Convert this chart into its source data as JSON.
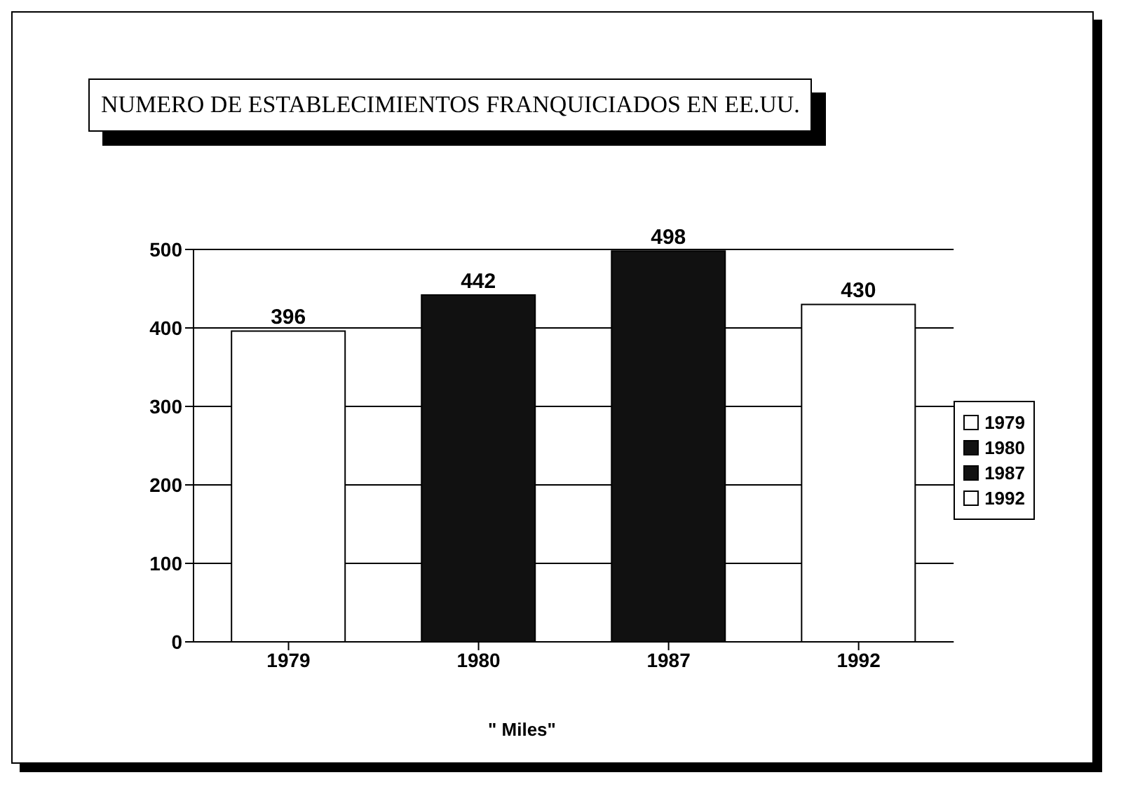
{
  "chart_data": {
    "type": "bar",
    "title": "NUMERO DE ESTABLECIMIENTOS FRANQUICIADOS EN EE.UU.",
    "xlabel": "\" Miles\"",
    "categories": [
      "1979",
      "1980",
      "1987",
      "1992"
    ],
    "series": [
      {
        "name": "1979",
        "color": "#ffffff",
        "values": [
          396,
          null,
          null,
          null
        ]
      },
      {
        "name": "1980",
        "color": "#111111",
        "values": [
          null,
          442,
          null,
          null
        ]
      },
      {
        "name": "1987",
        "color": "#111111",
        "values": [
          null,
          null,
          498,
          null
        ]
      },
      {
        "name": "1992",
        "color": "#ffffff",
        "values": [
          null,
          null,
          null,
          430
        ]
      }
    ],
    "stacked": true,
    "ylim": [
      0,
      500
    ],
    "yticks": [
      0,
      100,
      200,
      300,
      400,
      500
    ],
    "grid": "y",
    "legend": "right",
    "data_labels": true
  }
}
